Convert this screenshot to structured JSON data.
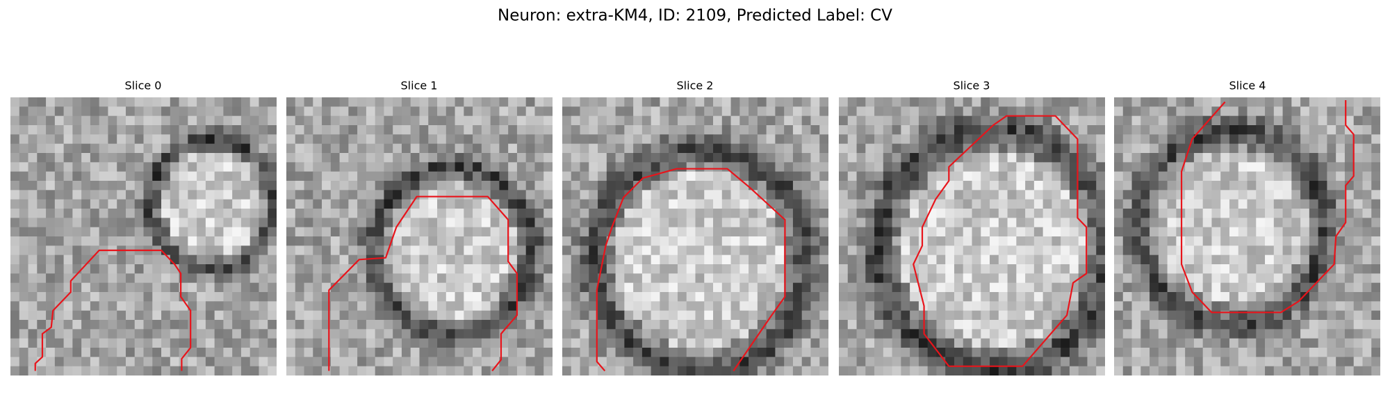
{
  "title": "Neuron: extra-KM4, ID: 2109, Predicted Label: CV",
  "panels": [
    {
      "title": "Slice 0"
    },
    {
      "title": "Slice 1"
    },
    {
      "title": "Slice 2"
    },
    {
      "title": "Slice 3"
    },
    {
      "title": "Slice 4"
    }
  ]
}
